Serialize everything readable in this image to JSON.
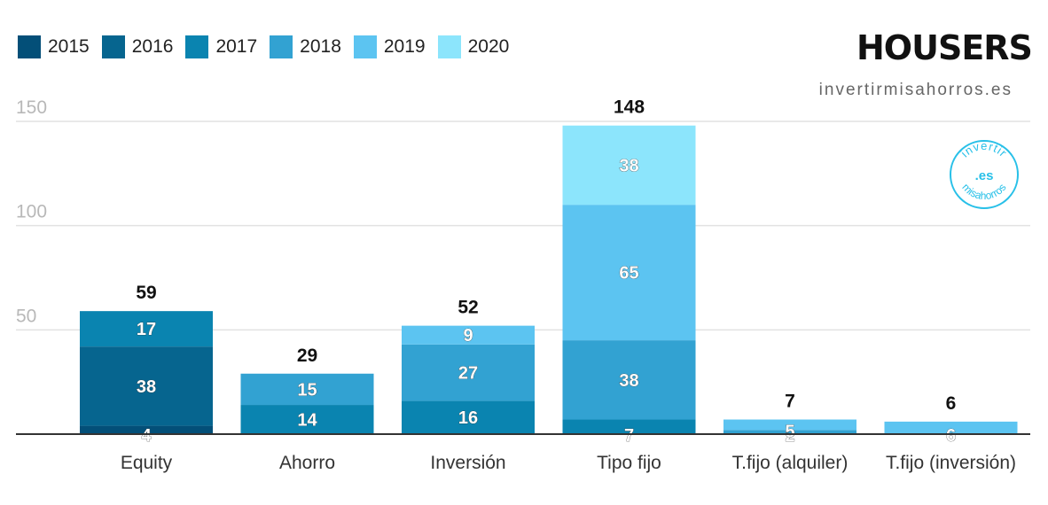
{
  "brand": {
    "logo_text": "HOUSERS",
    "website": "invertirmisahorros.es",
    "badge_top": "invertir",
    "badge_mid": ".es",
    "badge_bottom": "misahorros"
  },
  "colors": {
    "2015": "#034f78",
    "2016": "#06658f",
    "2017": "#0a84b0",
    "2018": "#32a2d2",
    "2019": "#5cc4f1",
    "2020": "#8ce5fc",
    "accent": "#28c0e8"
  },
  "legend": [
    {
      "label": "2015",
      "color": "#034f78"
    },
    {
      "label": "2016",
      "color": "#06658f"
    },
    {
      "label": "2017",
      "color": "#0a84b0"
    },
    {
      "label": "2018",
      "color": "#32a2d2"
    },
    {
      "label": "2019",
      "color": "#5cc4f1"
    },
    {
      "label": "2020",
      "color": "#8ce5fc"
    }
  ],
  "chart_data": {
    "type": "bar",
    "stacked": true,
    "categories": [
      "Equity",
      "Ahorro",
      "Inversión",
      "Tipo fijo",
      "T.fijo (alquiler)",
      "T.fijo (inversión)"
    ],
    "series": [
      {
        "name": "2015",
        "values": [
          4,
          0,
          0,
          0,
          0,
          0
        ]
      },
      {
        "name": "2016",
        "values": [
          38,
          0,
          0,
          0,
          0,
          0
        ]
      },
      {
        "name": "2017",
        "values": [
          17,
          14,
          16,
          7,
          0,
          0
        ]
      },
      {
        "name": "2018",
        "values": [
          0,
          15,
          27,
          38,
          2,
          0
        ]
      },
      {
        "name": "2019",
        "values": [
          0,
          0,
          9,
          65,
          5,
          6
        ]
      },
      {
        "name": "2020",
        "values": [
          0,
          0,
          0,
          38,
          0,
          0
        ]
      }
    ],
    "totals": [
      59,
      29,
      52,
      148,
      7,
      6
    ],
    "yticks": [
      50,
      100,
      150
    ],
    "ylim": [
      0,
      150
    ],
    "grid": true,
    "legend_position": "top-left"
  }
}
